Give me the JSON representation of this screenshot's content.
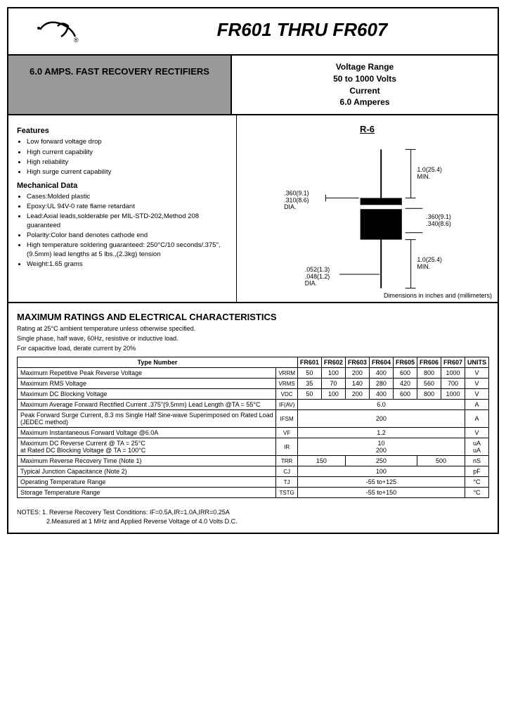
{
  "header": {
    "title": "FR601 THRU FR607"
  },
  "subheader": {
    "left": "6.0 AMPS. FAST RECOVERY RECTIFIERS",
    "right_l1": "Voltage Range",
    "right_l2": "50 to 1000 Volts",
    "right_l3": "Current",
    "right_l4": "6.0 Amperes"
  },
  "features": {
    "title": "Features",
    "items": [
      "Low forward voltage drop",
      "High current capability",
      "High reliability",
      "High surge current capability"
    ]
  },
  "mechanical": {
    "title": "Mechanical Data",
    "items": [
      "Cases:Molded plastic",
      "Epoxy:UL 94V-0 rate flame retardant",
      "Lead:Axial leads,solderable per MIL-STD-202,Method 208 guaranteed",
      "Polarity:Color band denotes cathode end",
      "High temperature soldering guaranteed: 250°C/10 seconds/.375\",(9.5mm) lead lengths at 5 lbs.,(2.3kg) tension",
      "Weight:1.65 grams"
    ]
  },
  "package": {
    "title": "R-6",
    "dim1": ".360(9.1)",
    "dim1b": ".310(8.6)",
    "dim1c": "DIA.",
    "dim2": "1.0(25.4)",
    "dim2b": "MIN.",
    "dim3": ".360(9.1)",
    "dim3b": ".340(8.6)",
    "dim4": "1.0(25.4)",
    "dim4b": "MIN.",
    "dim5": ".052(1.3)",
    "dim5b": ".048(1.2)",
    "dim5c": "DIA.",
    "note": "Dimensions in inches and (millimeters)"
  },
  "ratings": {
    "title": "MAXIMUM RATINGS AND ELECTRICAL CHARACTERISTICS",
    "desc1": "Rating at 25°C ambient temperature unless otherwise specified.",
    "desc2": "Single phase, half wave, 60Hz, resistive or inductive load.",
    "desc3": "For capacitive load, derate current by 20%"
  },
  "table": {
    "col_type": "Type Number",
    "cols": [
      "FR601",
      "FR602",
      "FR603",
      "FR604",
      "FR605",
      "FR606",
      "FR607",
      "UNITS"
    ],
    "rows": [
      {
        "label": "Maximum Repetitive Peak Reverse Voltage",
        "sym": "VRRM",
        "v": [
          "50",
          "100",
          "200",
          "400",
          "600",
          "800",
          "1000",
          "V"
        ]
      },
      {
        "label": "Maximum RMS Voltage",
        "sym": "VRMS",
        "v": [
          "35",
          "70",
          "140",
          "280",
          "420",
          "560",
          "700",
          "V"
        ]
      },
      {
        "label": "Maximum DC Blocking Voltage",
        "sym": "VDC",
        "v": [
          "50",
          "100",
          "200",
          "400",
          "600",
          "800",
          "1000",
          "V"
        ]
      },
      {
        "label": "Maximum Average Forward Rectified Current .375\"(9.5mm) Lead Length @TA = 55°C",
        "sym": "IF(AV)",
        "span": "6.0",
        "unit": "A"
      },
      {
        "label": "Peak Forward Surge Current, 8.3 ms Single Half Sine-wave Superimposed on Rated Load (JEDEC method)",
        "sym": "IFSM",
        "span": "200",
        "unit": "A"
      },
      {
        "label": "Maximum Instantaneous Forward Voltage @6.0A",
        "sym": "VF",
        "span": "1.2",
        "unit": "V"
      },
      {
        "label": "Maximum DC Reverse Current @ TA = 25°C<br>at Rated DC Blocking Voltage @ TA = 100°C",
        "sym": "IR",
        "span": "10<br>200",
        "unit": "uA<br>uA"
      },
      {
        "label": "Maximum Reverse Recovery Time (Note 1)",
        "sym": "TRR",
        "trr": [
          "150",
          "250",
          "500"
        ],
        "unit": "nS"
      },
      {
        "label": "Typical Junction Capacitance (Note 2)",
        "sym": "CJ",
        "span": "100",
        "unit": "pF"
      },
      {
        "label": "Operating Temperature Range",
        "sym": "TJ",
        "span": "-55 to+125",
        "unit": "°C"
      },
      {
        "label": "Storage Temperature Range",
        "sym": "TSTG",
        "span": "-55 to+150",
        "unit": "°C"
      }
    ]
  },
  "notes": {
    "l1": "NOTES: 1. Reverse Recovery Test Conditions: IF=0.5A,IR=1.0A,IRR=0.25A",
    "l2": "2.Measured at 1 MHz and Applied Reverse Voltage of 4.0 Volts D.C."
  }
}
